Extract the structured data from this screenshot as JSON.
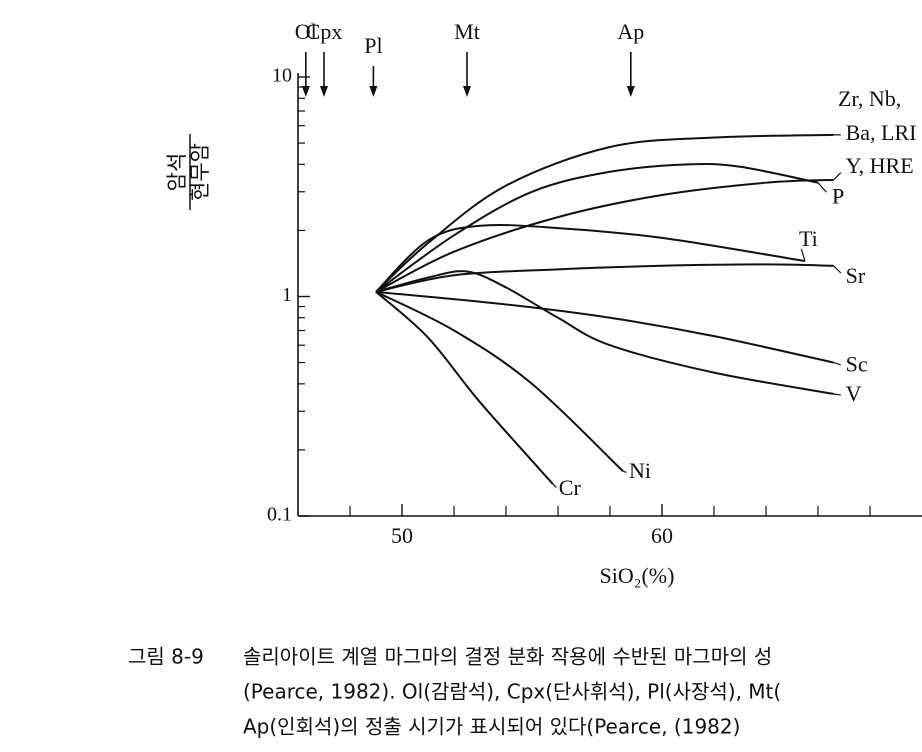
{
  "chart_data": {
    "type": "line",
    "y_label": {
      "numerator": "암석",
      "denominator": "현무암"
    },
    "x_label": "SiO₂(%)",
    "xlim": [
      46,
      70
    ],
    "xticks": [
      50,
      60
    ],
    "xminor_ticks": [
      48,
      52,
      54,
      56,
      58,
      62,
      64,
      66,
      68
    ],
    "ylim": [
      0.1,
      10
    ],
    "yticks": [
      0.1,
      1,
      10
    ],
    "yminor_ticks": [
      0.2,
      0.3,
      0.4,
      0.5,
      0.6,
      0.7,
      0.8,
      0.9,
      2,
      3,
      4,
      5,
      6,
      7,
      8,
      9
    ],
    "log_y": true,
    "color": "#111111",
    "series": [
      {
        "name": "Ba, LRI",
        "x": [
          49,
          51,
          54,
          58,
          62,
          66.6
        ],
        "values": [
          1.05,
          1.75,
          3.2,
          4.8,
          5.3,
          5.45
        ]
      },
      {
        "name": "Y, HRE",
        "x": [
          49,
          52,
          56,
          60,
          64,
          66.6
        ],
        "values": [
          1.05,
          1.6,
          2.3,
          2.9,
          3.3,
          3.4
        ]
      },
      {
        "name": "P",
        "x": [
          49,
          52,
          55,
          58,
          61,
          63,
          66
        ],
        "values": [
          1.05,
          1.9,
          3.0,
          3.7,
          4.0,
          3.9,
          3.3
        ]
      },
      {
        "name": "Ti",
        "x": [
          49,
          51,
          53,
          56,
          60,
          65.5
        ],
        "values": [
          1.05,
          1.8,
          2.1,
          2.05,
          1.85,
          1.45
        ]
      },
      {
        "name": "Sr",
        "x": [
          49,
          52,
          56,
          60,
          64,
          66.6
        ],
        "values": [
          1.05,
          1.25,
          1.33,
          1.38,
          1.4,
          1.38
        ]
      },
      {
        "name": "Sc",
        "x": [
          49,
          54,
          58,
          62,
          66.6
        ],
        "values": [
          1.05,
          0.92,
          0.8,
          0.66,
          0.5
        ]
      },
      {
        "name": "V",
        "x": [
          49,
          51,
          52.5,
          54,
          56,
          58,
          62,
          66.6
        ],
        "values": [
          1.05,
          1.22,
          1.3,
          1.1,
          0.8,
          0.6,
          0.45,
          0.36
        ]
      },
      {
        "name": "Ni",
        "x": [
          49,
          52,
          55,
          58.5
        ],
        "values": [
          1.05,
          0.7,
          0.4,
          0.16
        ]
      },
      {
        "name": "Cr",
        "x": [
          49,
          51,
          53,
          55.8
        ],
        "values": [
          1.05,
          0.65,
          0.33,
          0.14
        ]
      }
    ],
    "annotations": [
      "Zr, Nb,"
    ],
    "minerals": [
      {
        "label": "Ol",
        "x": 46.3
      },
      {
        "label": "Cpx",
        "x": 47.0
      },
      {
        "label": "Pl",
        "x": 48.9
      },
      {
        "label": "Mt",
        "x": 52.5
      },
      {
        "label": "Ap",
        "x": 58.8
      }
    ]
  },
  "caption": {
    "number": "그림 8-9",
    "lines": [
      "솔리아이트 계열 마그마의 결정 분화 작용에 수반된 마그마의 성",
      "(Pearce, 1982). Ol(감람석), Cpx(단사휘석), Pl(사장석), Mt(",
      "Ap(인회석)의 정출 시기가 표시되어 있다(Pearce, (1982)"
    ]
  }
}
